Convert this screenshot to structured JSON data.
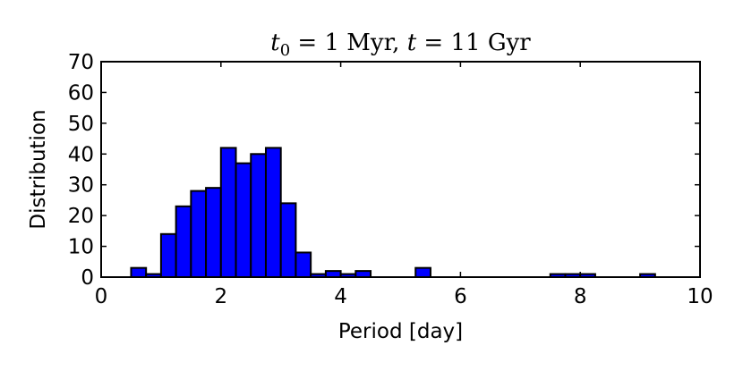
{
  "chart_data": {
    "type": "bar",
    "title_parts": {
      "t0_symbol": "t",
      "t0_subscript": "0",
      "t0_value": " = 1 Myr, ",
      "t_symbol": "t",
      "t_value": " = 11 Gyr"
    },
    "xlabel": "Period [day]",
    "ylabel": "Distribution",
    "xlim": [
      0,
      10
    ],
    "ylim": [
      0,
      70
    ],
    "xticks": [
      0,
      2,
      4,
      6,
      8,
      10
    ],
    "yticks": [
      0,
      10,
      20,
      30,
      40,
      50,
      60,
      70
    ],
    "bin_width": 0.25,
    "bins": [
      {
        "x0": 0.5,
        "value": 3
      },
      {
        "x0": 0.75,
        "value": 1
      },
      {
        "x0": 1.0,
        "value": 14
      },
      {
        "x0": 1.25,
        "value": 23
      },
      {
        "x0": 1.5,
        "value": 28
      },
      {
        "x0": 1.75,
        "value": 29
      },
      {
        "x0": 2.0,
        "value": 42
      },
      {
        "x0": 2.25,
        "value": 37
      },
      {
        "x0": 2.5,
        "value": 40
      },
      {
        "x0": 2.75,
        "value": 42
      },
      {
        "x0": 3.0,
        "value": 24
      },
      {
        "x0": 3.25,
        "value": 8
      },
      {
        "x0": 3.5,
        "value": 1
      },
      {
        "x0": 3.75,
        "value": 2
      },
      {
        "x0": 4.0,
        "value": 1
      },
      {
        "x0": 4.25,
        "value": 2
      },
      {
        "x0": 5.25,
        "value": 3
      },
      {
        "x0": 7.5,
        "value": 1
      },
      {
        "x0": 7.75,
        "value": 1
      },
      {
        "x0": 8.0,
        "value": 1
      },
      {
        "x0": 9.0,
        "value": 1
      }
    ],
    "bar_color": "#0000ff",
    "edge_color": "#000000",
    "grid": false
  }
}
